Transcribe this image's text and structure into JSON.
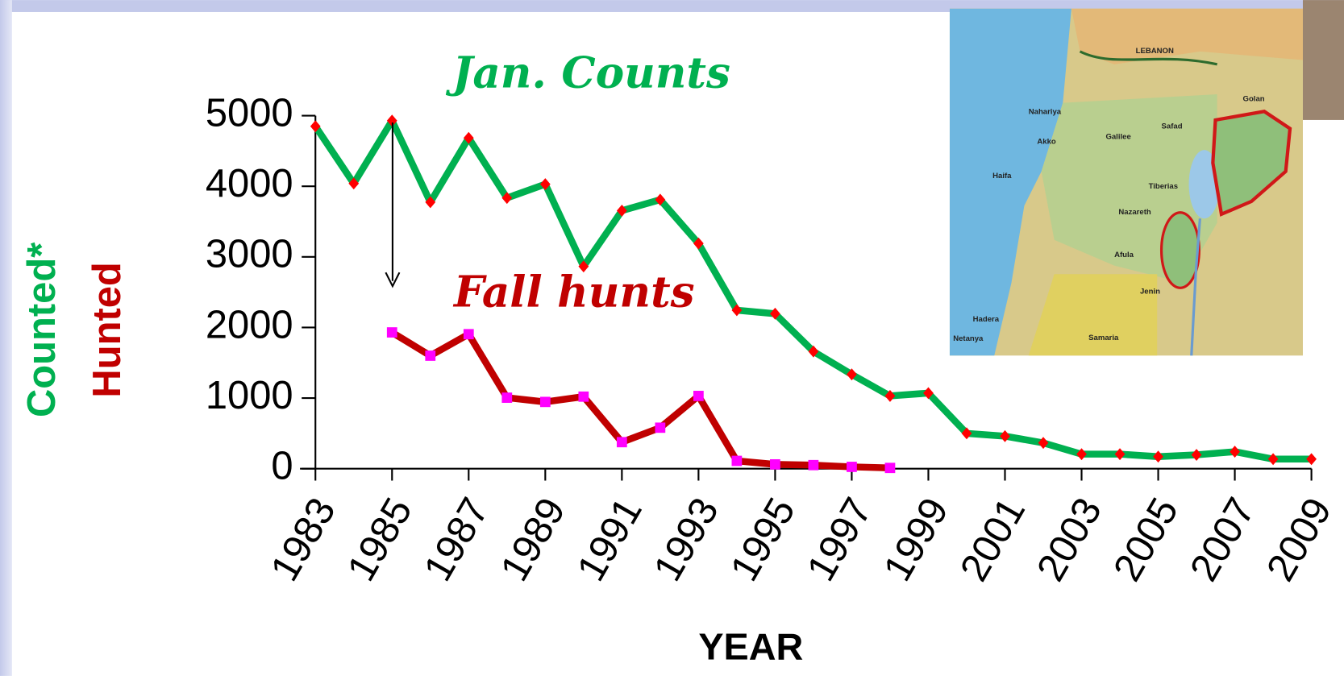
{
  "chart_data": {
    "type": "line",
    "x": [
      1983,
      1984,
      1985,
      1986,
      1987,
      1988,
      1989,
      1990,
      1991,
      1992,
      1993,
      1994,
      1995,
      1996,
      1997,
      1998,
      1999,
      2000,
      2001,
      2002,
      2003,
      2004,
      2005,
      2006,
      2007,
      2008,
      2009
    ],
    "xlim": [
      1983,
      2009
    ],
    "xticks": [
      1983,
      1985,
      1987,
      1989,
      1991,
      1993,
      1995,
      1997,
      1999,
      2001,
      2003,
      2005,
      2007,
      2009
    ],
    "ylim": [
      0,
      5000
    ],
    "yticks": [
      0,
      1000,
      2000,
      3000,
      4000,
      5000
    ],
    "x_label": "YEAR",
    "y_labels": [
      "Counted*",
      "Hunted"
    ],
    "annotations": [
      "Jan. Counts",
      "Fall hunts"
    ],
    "series": [
      {
        "name": "Jan. Counts",
        "color": "#00b050",
        "marker_color": "#ff0000",
        "marker": "diamond",
        "values": [
          4850,
          4040,
          4930,
          3775,
          4685,
          3835,
          4030,
          2865,
          3655,
          3810,
          3190,
          2245,
          2195,
          1660,
          1335,
          1030,
          1070,
          500,
          460,
          365,
          205,
          205,
          170,
          195,
          240,
          135,
          135
        ]
      },
      {
        "name": "Fall hunts",
        "color": "#c00000",
        "marker_color": "#ff00ff",
        "marker": "square",
        "values": [
          null,
          null,
          1930,
          1600,
          1905,
          1005,
          945,
          1020,
          375,
          580,
          1030,
          110,
          60,
          50,
          25,
          10,
          null,
          null,
          null,
          null,
          null,
          null,
          null,
          null,
          null,
          null,
          null
        ]
      }
    ],
    "map_labels": [
      "LEBANON",
      "Nahariya",
      "Akko",
      "Galilee",
      "Safad",
      "Golan",
      "Haifa",
      "Tiberias",
      "Nazareth",
      "Afula",
      "Jenin",
      "Hadera",
      "Netanya",
      "Samaria"
    ]
  }
}
